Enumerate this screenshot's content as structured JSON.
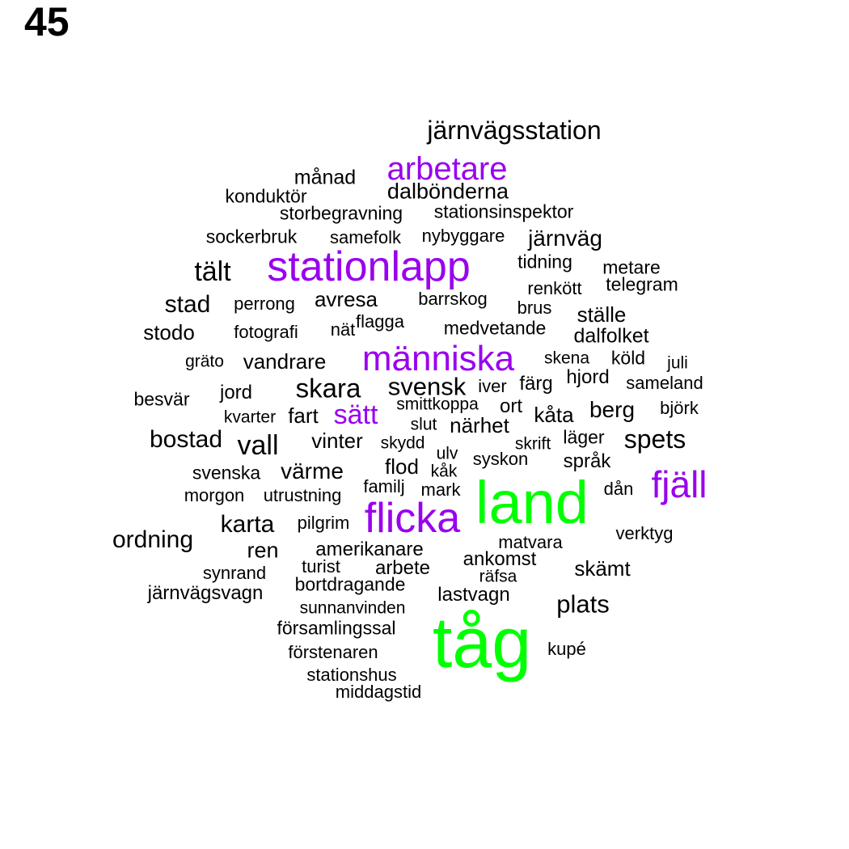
{
  "page_label": "45",
  "colors": {
    "large": "#00ff00",
    "medium": "#9900ee",
    "small": "#000000"
  },
  "words": [
    {
      "text": "tåg",
      "tier": "large"
    },
    {
      "text": "land",
      "tier": "large"
    },
    {
      "text": "stationlapp",
      "tier": "medium"
    },
    {
      "text": "människa",
      "tier": "medium"
    },
    {
      "text": "flicka",
      "tier": "medium"
    },
    {
      "text": "fjäll",
      "tier": "medium"
    },
    {
      "text": "arbetare",
      "tier": "medium"
    },
    {
      "text": "sätt",
      "tier": "medium"
    },
    {
      "text": "järnvägsstation",
      "tier": "small"
    },
    {
      "text": "månad",
      "tier": "small"
    },
    {
      "text": "dalbönderna",
      "tier": "small"
    },
    {
      "text": "konduktör",
      "tier": "small"
    },
    {
      "text": "storbegravning",
      "tier": "small"
    },
    {
      "text": "stationsinspektor",
      "tier": "small"
    },
    {
      "text": "sockerbruk",
      "tier": "small"
    },
    {
      "text": "samefolk",
      "tier": "small"
    },
    {
      "text": "nybyggare",
      "tier": "small"
    },
    {
      "text": "järnväg",
      "tier": "small"
    },
    {
      "text": "tält",
      "tier": "small"
    },
    {
      "text": "tidning",
      "tier": "small"
    },
    {
      "text": "metare",
      "tier": "small"
    },
    {
      "text": "renkött",
      "tier": "small"
    },
    {
      "text": "telegram",
      "tier": "small"
    },
    {
      "text": "stad",
      "tier": "small"
    },
    {
      "text": "perrong",
      "tier": "small"
    },
    {
      "text": "avresa",
      "tier": "small"
    },
    {
      "text": "barrskog",
      "tier": "small"
    },
    {
      "text": "brus",
      "tier": "small"
    },
    {
      "text": "ställe",
      "tier": "small"
    },
    {
      "text": "stodo",
      "tier": "small"
    },
    {
      "text": "fotografi",
      "tier": "small"
    },
    {
      "text": "nät",
      "tier": "small"
    },
    {
      "text": "flagga",
      "tier": "small"
    },
    {
      "text": "medvetande",
      "tier": "small"
    },
    {
      "text": "dalfolket",
      "tier": "small"
    },
    {
      "text": "gräto",
      "tier": "small"
    },
    {
      "text": "vandrare",
      "tier": "small"
    },
    {
      "text": "skena",
      "tier": "small"
    },
    {
      "text": "köld",
      "tier": "small"
    },
    {
      "text": "juli",
      "tier": "small"
    },
    {
      "text": "besvär",
      "tier": "small"
    },
    {
      "text": "jord",
      "tier": "small"
    },
    {
      "text": "skara",
      "tier": "small"
    },
    {
      "text": "svensk",
      "tier": "small"
    },
    {
      "text": "iver",
      "tier": "small"
    },
    {
      "text": "färg",
      "tier": "small"
    },
    {
      "text": "hjord",
      "tier": "small"
    },
    {
      "text": "sameland",
      "tier": "small"
    },
    {
      "text": "kvarter",
      "tier": "small"
    },
    {
      "text": "fart",
      "tier": "small"
    },
    {
      "text": "smittkoppa",
      "tier": "small"
    },
    {
      "text": "ort",
      "tier": "small"
    },
    {
      "text": "kåta",
      "tier": "small"
    },
    {
      "text": "berg",
      "tier": "small"
    },
    {
      "text": "björk",
      "tier": "small"
    },
    {
      "text": "bostad",
      "tier": "small"
    },
    {
      "text": "vall",
      "tier": "small"
    },
    {
      "text": "vinter",
      "tier": "small"
    },
    {
      "text": "slut",
      "tier": "small"
    },
    {
      "text": "närhet",
      "tier": "small"
    },
    {
      "text": "skydd",
      "tier": "small"
    },
    {
      "text": "skrift",
      "tier": "small"
    },
    {
      "text": "läger",
      "tier": "small"
    },
    {
      "text": "spets",
      "tier": "small"
    },
    {
      "text": "svenska",
      "tier": "small"
    },
    {
      "text": "värme",
      "tier": "small"
    },
    {
      "text": "flod",
      "tier": "small"
    },
    {
      "text": "ulv",
      "tier": "small"
    },
    {
      "text": "kåk",
      "tier": "small"
    },
    {
      "text": "syskon",
      "tier": "small"
    },
    {
      "text": "språk",
      "tier": "small"
    },
    {
      "text": "morgon",
      "tier": "small"
    },
    {
      "text": "utrustning",
      "tier": "small"
    },
    {
      "text": "familj",
      "tier": "small"
    },
    {
      "text": "mark",
      "tier": "small"
    },
    {
      "text": "dån",
      "tier": "small"
    },
    {
      "text": "karta",
      "tier": "small"
    },
    {
      "text": "pilgrim",
      "tier": "small"
    },
    {
      "text": "ordning",
      "tier": "small"
    },
    {
      "text": "matvara",
      "tier": "small"
    },
    {
      "text": "verktyg",
      "tier": "small"
    },
    {
      "text": "ren",
      "tier": "small"
    },
    {
      "text": "amerikanare",
      "tier": "small"
    },
    {
      "text": "ankomst",
      "tier": "small"
    },
    {
      "text": "turist",
      "tier": "small"
    },
    {
      "text": "arbete",
      "tier": "small"
    },
    {
      "text": "skämt",
      "tier": "small"
    },
    {
      "text": "synrand",
      "tier": "small"
    },
    {
      "text": "räfsa",
      "tier": "small"
    },
    {
      "text": "järnvägsvagn",
      "tier": "small"
    },
    {
      "text": "bortdragande",
      "tier": "small"
    },
    {
      "text": "lastvagn",
      "tier": "small"
    },
    {
      "text": "plats",
      "tier": "small"
    },
    {
      "text": "sunnanvinden",
      "tier": "small"
    },
    {
      "text": "församlingssal",
      "tier": "small"
    },
    {
      "text": "kupé",
      "tier": "small"
    },
    {
      "text": "förstenaren",
      "tier": "small"
    },
    {
      "text": "stationshus",
      "tier": "small"
    },
    {
      "text": "middagstid",
      "tier": "small"
    }
  ]
}
